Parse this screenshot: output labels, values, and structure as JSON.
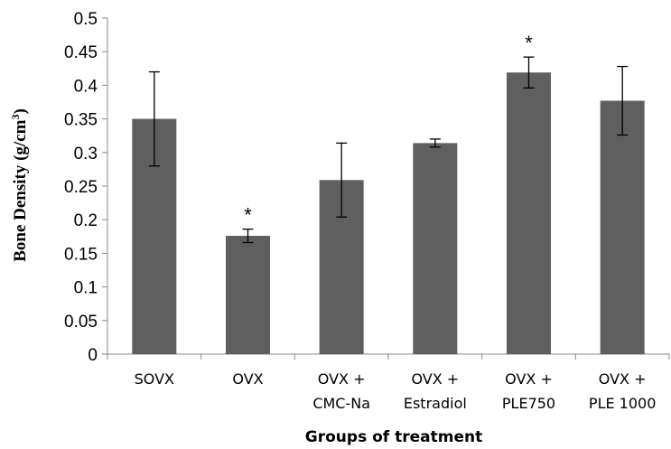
{
  "chart_data": {
    "type": "bar",
    "categories": [
      [
        "SOVX"
      ],
      [
        "OVX"
      ],
      [
        "OVX +",
        "CMC-Na"
      ],
      [
        "OVX +",
        "Estradiol"
      ],
      [
        "OVX +",
        "PLE750"
      ],
      [
        "OVX +",
        "PLE 1000"
      ]
    ],
    "values": [
      0.35,
      0.176,
      0.259,
      0.314,
      0.419,
      0.377
    ],
    "errors": [
      0.07,
      0.01,
      0.055,
      0.006,
      0.023,
      0.051
    ],
    "significance": [
      "",
      "*",
      "",
      "",
      "*",
      ""
    ],
    "ylim": [
      0,
      0.5
    ],
    "yticks": [
      "0",
      "0.05",
      "0.1",
      "0.15",
      "0.2",
      "0.25",
      "0.3",
      "0.35",
      "0.4",
      "0.45",
      "0.5"
    ],
    "xlabel": "Groups of treatment",
    "ylabel": "Bone Density (g/cm",
    "ylabel_sup": "3",
    "ylabel_end": ")",
    "bar_color": "#5f5f5f",
    "grid": false
  }
}
